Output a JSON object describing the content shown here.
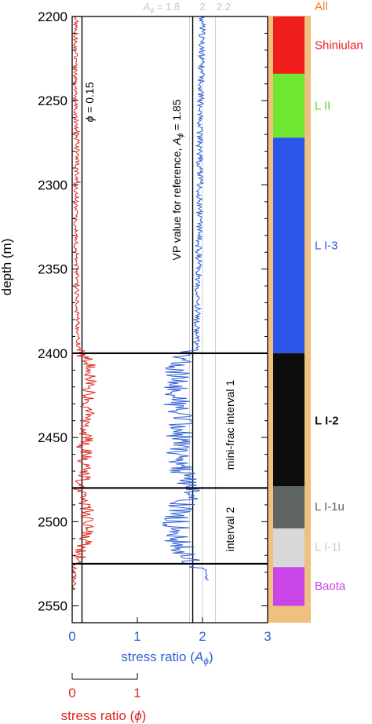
{
  "chart_data": {
    "type": "line",
    "y_axis": {
      "label": "depth (m)",
      "range": [
        2200,
        2560
      ],
      "ticks": [
        2200,
        2250,
        2300,
        2350,
        2400,
        2450,
        2500,
        2550
      ],
      "inverted": true
    },
    "x_axis_primary": {
      "label": "stress ratio (",
      "label_symbol": "A",
      "label_sub": "ϕ",
      "label_close": ")",
      "range": [
        0,
        3
      ],
      "ticks": [
        0,
        1,
        2,
        3
      ],
      "color": "#2f5fd6"
    },
    "x_axis_secondary": {
      "label": "stress ratio (",
      "label_symbol": "ϕ",
      "label_close": ")",
      "range": [
        0,
        1
      ],
      "ticks": [
        0,
        1
      ],
      "color": "#e0261f"
    },
    "reference_lines": [
      {
        "axis": "phi",
        "value": 0.15,
        "label_symbol": "ϕ",
        "label_text": " = 0.15",
        "color": "#000000"
      },
      {
        "axis": "A",
        "value": 1.85,
        "label_text": "VP value for reference,  ",
        "label_symbol": "A",
        "label_sub": "ϕ",
        "label_value": " = 1.85",
        "color": "#000000"
      },
      {
        "axis": "A",
        "value": 1.8,
        "top_label_symbol": "A",
        "top_label_sub": "ϕ",
        "top_label_value": " = 1.8",
        "color": "#cccccc"
      },
      {
        "axis": "A",
        "value": 2.0,
        "top_label": "2",
        "color": "#cccccc"
      },
      {
        "axis": "A",
        "value": 2.2,
        "top_label": "2.2",
        "color": "#cccccc"
      }
    ],
    "horizontal_lines": [
      2400,
      2480,
      2525
    ],
    "interval_labels": [
      {
        "text": "mini-frac interval 1",
        "depth_center": 2440
      },
      {
        "text": "interval 2",
        "depth_center": 2503
      }
    ],
    "series": [
      {
        "axis": "phi",
        "color": "#e0261f",
        "profile": [
          [
            2200,
            0.06
          ],
          [
            2220,
            0.05
          ],
          [
            2240,
            0.05
          ],
          [
            2260,
            0.06
          ],
          [
            2280,
            0.08
          ],
          [
            2300,
            0.06
          ],
          [
            2320,
            0.05
          ],
          [
            2340,
            0.06
          ],
          [
            2360,
            0.07
          ],
          [
            2380,
            0.08
          ],
          [
            2398,
            0.1
          ],
          [
            2405,
            0.25
          ],
          [
            2415,
            0.3
          ],
          [
            2425,
            0.24
          ],
          [
            2440,
            0.22
          ],
          [
            2460,
            0.2
          ],
          [
            2475,
            0.18
          ],
          [
            2480,
            0.05
          ],
          [
            2490,
            0.22
          ],
          [
            2500,
            0.25
          ],
          [
            2510,
            0.22
          ],
          [
            2520,
            0.12
          ],
          [
            2526,
            0.05
          ],
          [
            2540,
            0.02
          ]
        ]
      },
      {
        "axis": "A",
        "color": "#2f5fd6",
        "profile": [
          [
            2200,
            2.0
          ],
          [
            2220,
            1.99
          ],
          [
            2240,
            1.98
          ],
          [
            2260,
            1.97
          ],
          [
            2280,
            1.95
          ],
          [
            2300,
            1.96
          ],
          [
            2320,
            1.95
          ],
          [
            2340,
            1.94
          ],
          [
            2360,
            1.93
          ],
          [
            2380,
            1.92
          ],
          [
            2398,
            1.9
          ],
          [
            2405,
            1.62
          ],
          [
            2415,
            1.58
          ],
          [
            2430,
            1.62
          ],
          [
            2445,
            1.64
          ],
          [
            2460,
            1.66
          ],
          [
            2475,
            1.7
          ],
          [
            2480,
            1.92
          ],
          [
            2490,
            1.66
          ],
          [
            2500,
            1.58
          ],
          [
            2512,
            1.62
          ],
          [
            2520,
            1.76
          ],
          [
            2526,
            1.95
          ],
          [
            2530,
            2.05
          ],
          [
            2535,
            2.05
          ]
        ]
      }
    ],
    "formation_column": {
      "background": "#efc07f",
      "units": [
        {
          "name": "All",
          "top": 2196,
          "bottom": 2200,
          "color": "#efc07f",
          "label_color": "#f07d28",
          "label_depth": 2196
        },
        {
          "name": "Shiniulan",
          "top": 2200,
          "bottom": 2234,
          "color": "#f01d1d",
          "label_color": "#e81f1f",
          "label_depth": 2217
        },
        {
          "name": "L II",
          "top": 2234,
          "bottom": 2272,
          "color": "#6ee832",
          "label_color": "#5ed626",
          "label_depth": 2253
        },
        {
          "name": "L I-3",
          "top": 2272,
          "bottom": 2400,
          "color": "#2d55ea",
          "label_color": "#2d55ea",
          "label_depth": 2336
        },
        {
          "name": "L I-2",
          "top": 2400,
          "bottom": 2479,
          "color": "#0d0d0d",
          "label_color": "#111111",
          "label_depth": 2440
        },
        {
          "name": "L I-1u",
          "top": 2479,
          "bottom": 2504,
          "color": "#5e6563",
          "label_color": "#5a5f5e",
          "label_depth": 2491
        },
        {
          "name": "L I-1l",
          "top": 2504,
          "bottom": 2527,
          "color": "#d8d8d8",
          "label_color": "#c9c9c9",
          "label_depth": 2515
        },
        {
          "name": "Baota",
          "top": 2527,
          "bottom": 2550,
          "color": "#c945e8",
          "label_color": "#c945e8",
          "label_depth": 2538
        }
      ]
    }
  }
}
